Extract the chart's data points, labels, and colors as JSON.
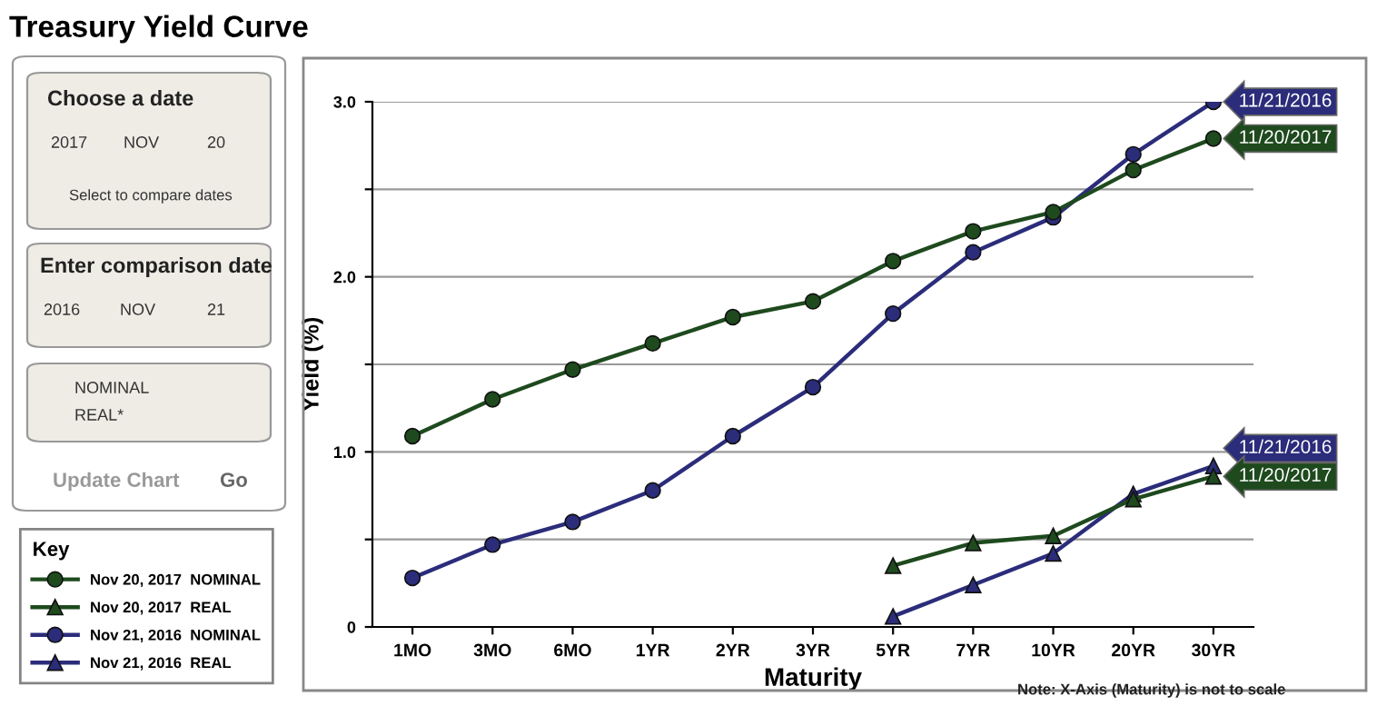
{
  "chart_data": {
    "type": "line",
    "title": "Treasury Yield Curve",
    "xlabel": "Maturity",
    "ylabel": "Yield (%)",
    "legend_title": "Key",
    "categories": [
      "1MO",
      "3MO",
      "6MO",
      "1YR",
      "2YR",
      "3YR",
      "5YR",
      "7YR",
      "10YR",
      "20YR",
      "30YR"
    ],
    "series": [
      {
        "name": "Nov 20, 2017  NOMINAL",
        "color": "#1e4a1e",
        "marker": "circle",
        "values": [
          1.09,
          1.3,
          1.47,
          1.62,
          1.77,
          1.86,
          2.09,
          2.26,
          2.37,
          2.61,
          2.79
        ]
      },
      {
        "name": "Nov 20, 2017  REAL",
        "color": "#1e4a1e",
        "marker": "triangle",
        "values": [
          null,
          null,
          null,
          null,
          null,
          null,
          0.35,
          0.48,
          0.52,
          0.73,
          0.86
        ]
      },
      {
        "name": "Nov 21, 2016  NOMINAL",
        "color": "#2b2c7a",
        "marker": "circle",
        "values": [
          0.28,
          0.47,
          0.6,
          0.78,
          1.09,
          1.37,
          1.79,
          2.14,
          2.34,
          2.7,
          3.0
        ]
      },
      {
        "name": "Nov 21, 2016  REAL",
        "color": "#2b2c7a",
        "marker": "triangle",
        "values": [
          null,
          null,
          null,
          null,
          null,
          null,
          0.06,
          0.24,
          0.42,
          0.76,
          0.92
        ]
      }
    ],
    "ylim": [
      0,
      3
    ],
    "yticks": [
      0,
      {
        "value": 0.5,
        "label": null
      },
      {
        "value": 1,
        "label": "1.0"
      },
      {
        "value": 1.5,
        "label": null
      },
      {
        "value": 2,
        "label": "2.0"
      },
      {
        "value": 2.5,
        "label": null
      },
      {
        "value": 3,
        "label": "3.0"
      }
    ],
    "grid": "y",
    "legend": "left",
    "annotations": [
      {
        "text": "11/21/2016",
        "x": "30YR",
        "y": 3.0
      },
      {
        "text": "11/20/2017",
        "x": "30YR",
        "y": 2.79
      },
      {
        "text": "11/21/2016",
        "x": "30YR",
        "y": 0.92
      },
      {
        "text": "11/20/2017",
        "x": "30YR",
        "y": 0.86
      },
      "Note: X-Axis (Maturity) is not to scale",
      "Choose a date",
      "2017",
      "NOV",
      "20",
      "Select to compare dates",
      "Enter comparison date",
      "2016",
      "NOV",
      "21",
      "NOMINAL",
      "REAL*",
      "Update Chart",
      "Go"
    ]
  }
}
